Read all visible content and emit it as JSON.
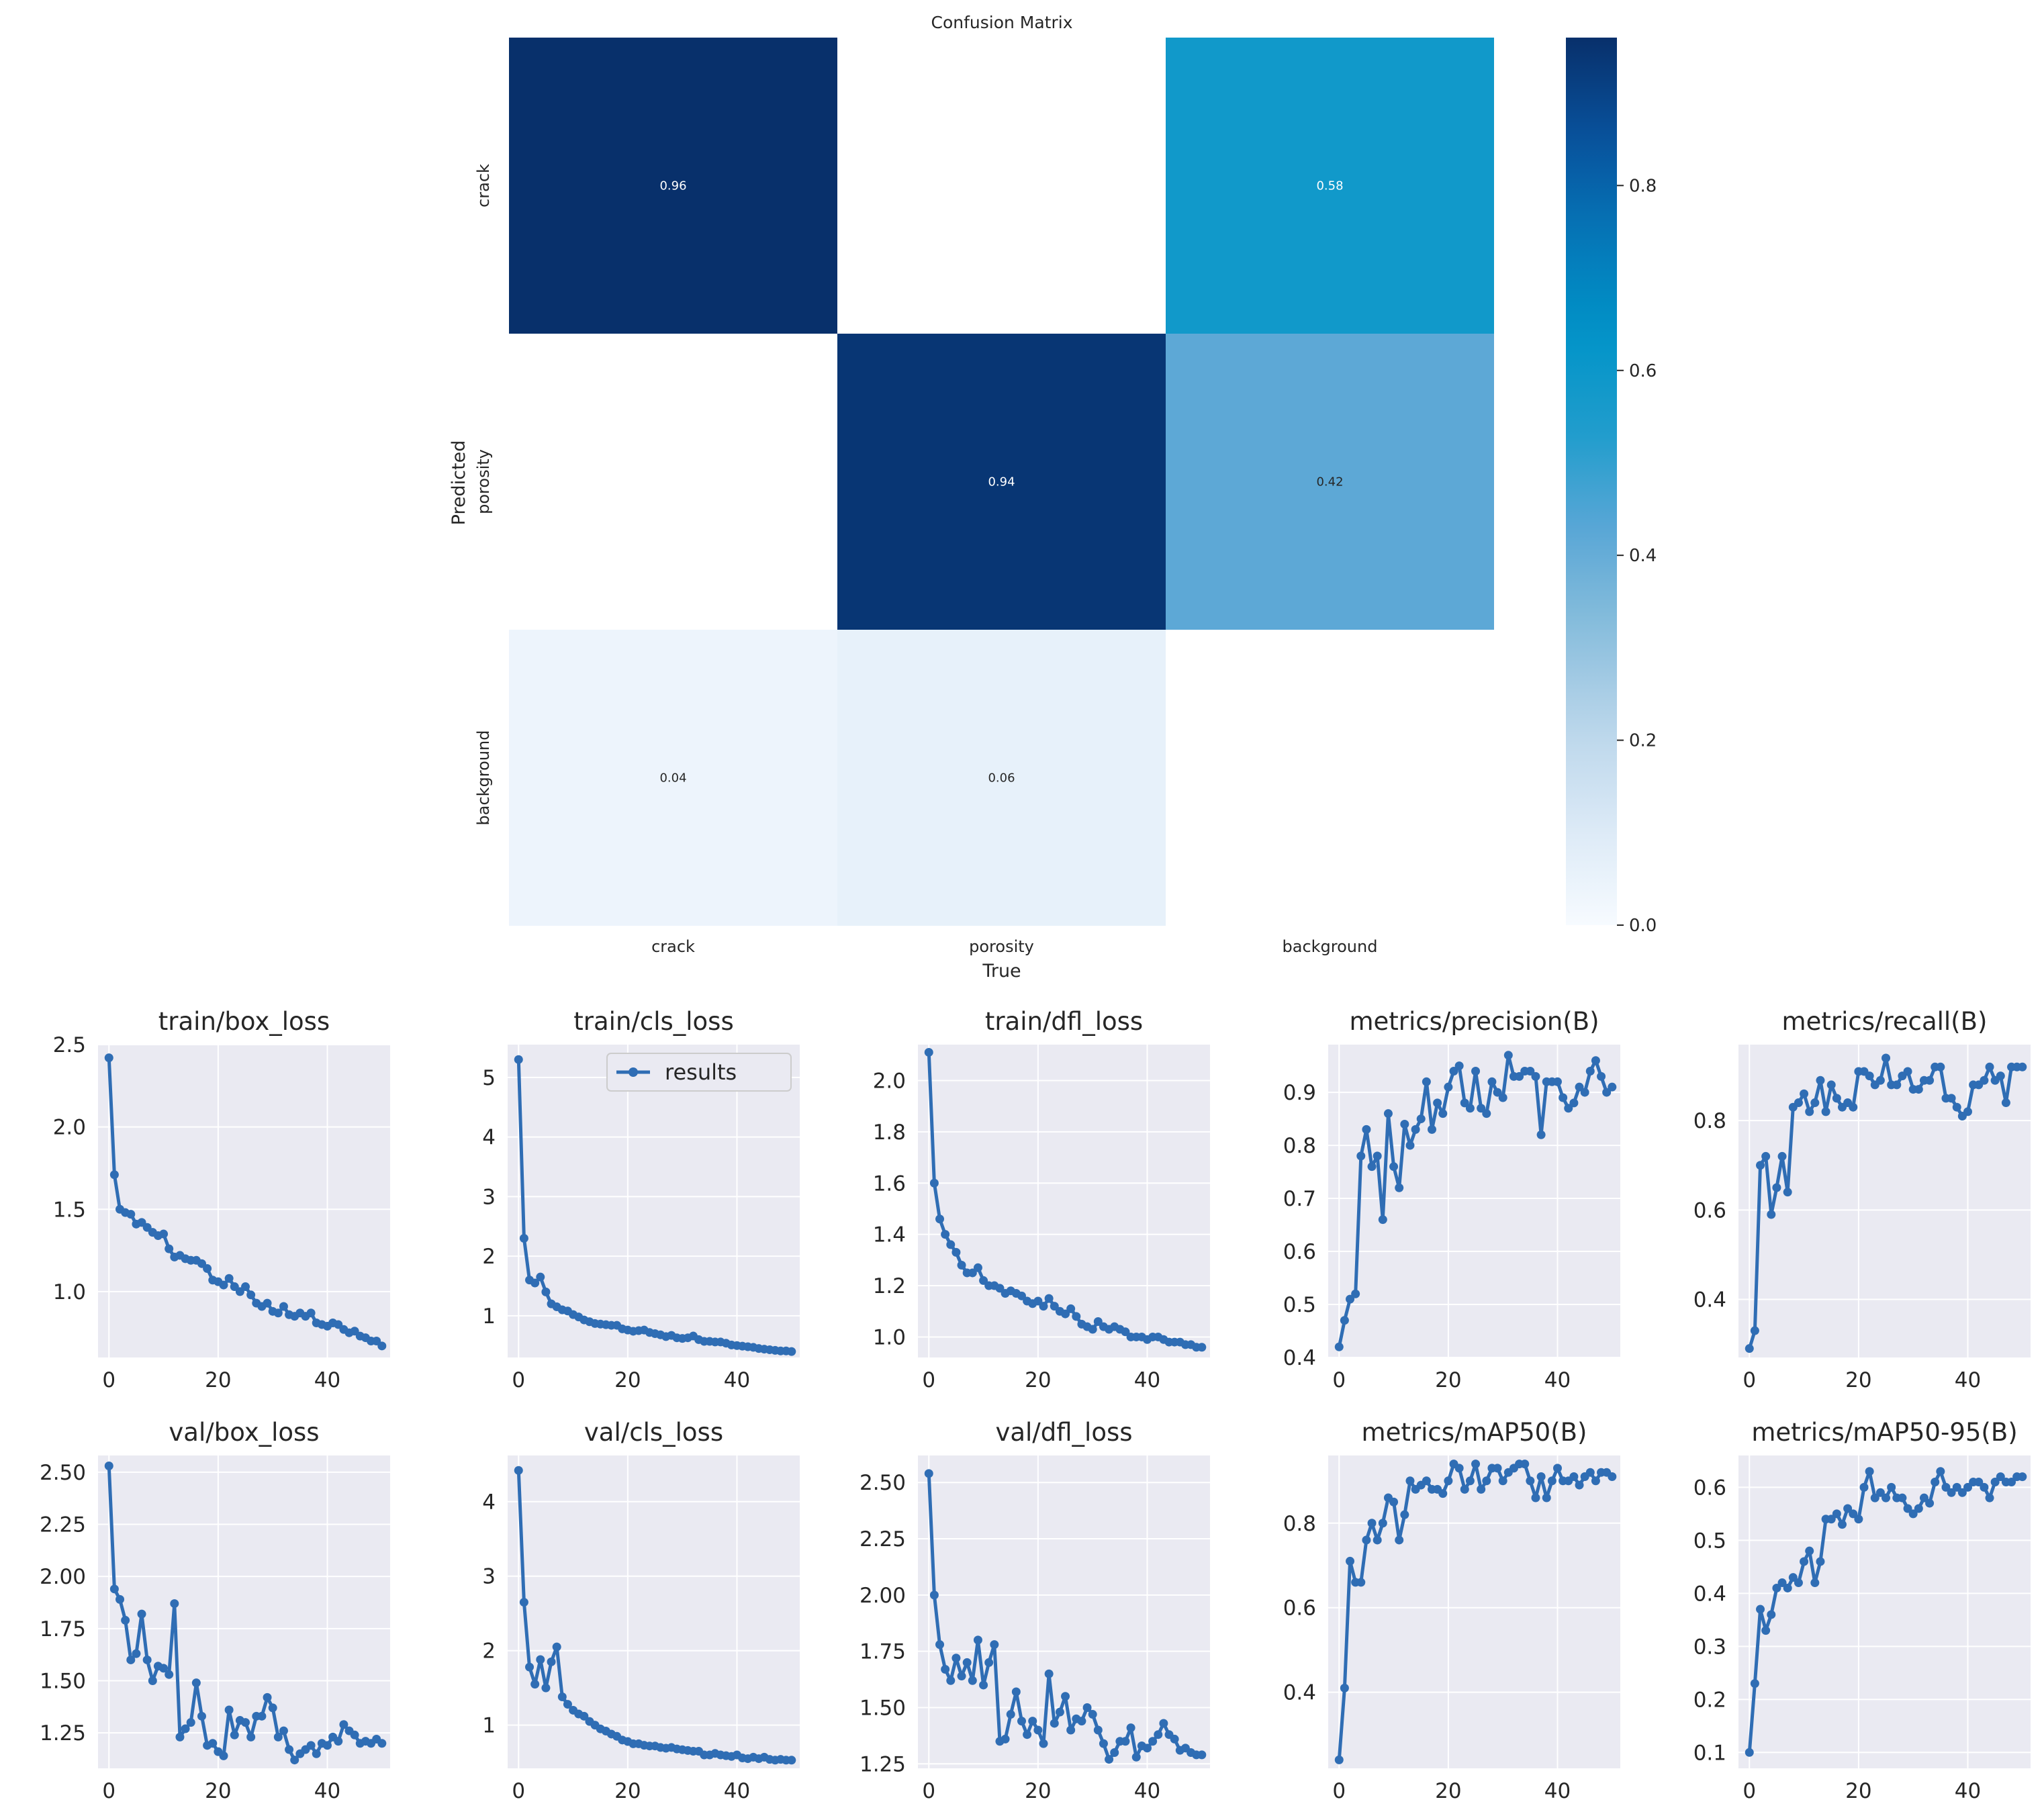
{
  "chart_data": [
    {
      "type": "heatmap",
      "title": "Confusion Matrix",
      "xlabel": "True",
      "ylabel": "Predicted",
      "x_categories": [
        "crack",
        "porosity",
        "background"
      ],
      "y_categories": [
        "crack",
        "porosity",
        "background"
      ],
      "values": [
        [
          0.96,
          null,
          0.58
        ],
        [
          null,
          0.94,
          0.42
        ],
        [
          0.04,
          0.06,
          null
        ]
      ],
      "colorbar": {
        "ticks": [
          "0.0",
          "0.2",
          "0.4",
          "0.6",
          "0.8"
        ],
        "range": [
          0,
          0.96
        ]
      },
      "colormap": [
        "#f7fbff",
        "#dbe9f6",
        "#bad6eb",
        "#89bedc",
        "#5aa7d6",
        "#1f9ccc",
        "#0094c8",
        "#0576b8",
        "#08519c",
        "#08306b"
      ]
    },
    {
      "type": "line",
      "title": "train/box_loss",
      "x_ticks": [
        0,
        20,
        40
      ],
      "xlim": [
        -2,
        51.5
      ],
      "y_ticks": [
        "1.0",
        "1.5",
        "2.0",
        "2.5"
      ],
      "ylim": [
        0.6,
        2.5
      ],
      "series": [
        {
          "name": "results",
          "values": [
            2.42,
            1.71,
            1.5,
            1.48,
            1.47,
            1.41,
            1.42,
            1.39,
            1.36,
            1.34,
            1.35,
            1.26,
            1.21,
            1.22,
            1.2,
            1.19,
            1.19,
            1.17,
            1.14,
            1.07,
            1.06,
            1.04,
            1.08,
            1.03,
            1.0,
            1.03,
            0.98,
            0.93,
            0.91,
            0.93,
            0.88,
            0.87,
            0.91,
            0.86,
            0.85,
            0.87,
            0.85,
            0.87,
            0.81,
            0.8,
            0.79,
            0.81,
            0.8,
            0.77,
            0.75,
            0.76,
            0.73,
            0.72,
            0.7,
            0.7,
            0.67
          ]
        }
      ]
    },
    {
      "type": "line",
      "title": "train/cls_loss",
      "legend": {
        "label": "results",
        "position": "top-right"
      },
      "x_ticks": [
        0,
        20,
        40
      ],
      "xlim": [
        -2,
        51.5
      ],
      "y_ticks": [
        "1",
        "2",
        "3",
        "4",
        "5"
      ],
      "ylim": [
        0.3,
        5.55
      ],
      "series": [
        {
          "name": "results",
          "values": [
            5.3,
            2.3,
            1.6,
            1.55,
            1.65,
            1.4,
            1.2,
            1.15,
            1.1,
            1.08,
            1.02,
            0.98,
            0.93,
            0.9,
            0.87,
            0.86,
            0.85,
            0.84,
            0.84,
            0.78,
            0.76,
            0.74,
            0.75,
            0.76,
            0.72,
            0.7,
            0.68,
            0.65,
            0.67,
            0.63,
            0.62,
            0.63,
            0.66,
            0.6,
            0.57,
            0.57,
            0.56,
            0.56,
            0.54,
            0.51,
            0.5,
            0.49,
            0.48,
            0.47,
            0.45,
            0.44,
            0.43,
            0.42,
            0.41,
            0.41,
            0.4
          ]
        }
      ]
    },
    {
      "type": "line",
      "title": "train/dfl_loss",
      "x_ticks": [
        0,
        20,
        40
      ],
      "xlim": [
        -2,
        51.5
      ],
      "y_ticks": [
        "1.0",
        "1.2",
        "1.4",
        "1.6",
        "1.8",
        "2.0"
      ],
      "ylim": [
        0.92,
        2.14
      ],
      "series": [
        {
          "name": "results",
          "values": [
            2.11,
            1.6,
            1.46,
            1.4,
            1.36,
            1.33,
            1.28,
            1.25,
            1.25,
            1.27,
            1.22,
            1.2,
            1.2,
            1.19,
            1.17,
            1.18,
            1.17,
            1.16,
            1.14,
            1.13,
            1.14,
            1.12,
            1.15,
            1.12,
            1.1,
            1.09,
            1.11,
            1.08,
            1.05,
            1.04,
            1.03,
            1.06,
            1.04,
            1.03,
            1.04,
            1.03,
            1.02,
            1.0,
            1.0,
            1.0,
            0.99,
            1.0,
            1.0,
            0.99,
            0.98,
            0.98,
            0.98,
            0.97,
            0.97,
            0.96,
            0.96
          ]
        }
      ]
    },
    {
      "type": "line",
      "title": "metrics/precision(B)",
      "x_ticks": [
        0,
        20,
        40
      ],
      "xlim": [
        -2,
        51.5
      ],
      "y_ticks": [
        "0.4",
        "0.5",
        "0.6",
        "0.7",
        "0.8",
        "0.9"
      ],
      "ylim": [
        0.4,
        0.99
      ],
      "series": [
        {
          "name": "results",
          "values": [
            0.42,
            0.47,
            0.51,
            0.52,
            0.78,
            0.83,
            0.76,
            0.78,
            0.66,
            0.86,
            0.76,
            0.72,
            0.84,
            0.8,
            0.83,
            0.85,
            0.92,
            0.83,
            0.88,
            0.86,
            0.91,
            0.94,
            0.95,
            0.88,
            0.87,
            0.94,
            0.87,
            0.86,
            0.92,
            0.9,
            0.89,
            0.97,
            0.93,
            0.93,
            0.94,
            0.94,
            0.93,
            0.82,
            0.92,
            0.92,
            0.92,
            0.89,
            0.87,
            0.88,
            0.91,
            0.9,
            0.94,
            0.96,
            0.93,
            0.9,
            0.91
          ]
        }
      ]
    },
    {
      "type": "line",
      "title": "metrics/recall(B)",
      "x_ticks": [
        0,
        20,
        40
      ],
      "xlim": [
        -2,
        51.5
      ],
      "y_ticks": [
        "0.4",
        "0.6",
        "0.8"
      ],
      "ylim": [
        0.27,
        0.97
      ],
      "series": [
        {
          "name": "results",
          "values": [
            0.29,
            0.33,
            0.7,
            0.72,
            0.59,
            0.65,
            0.72,
            0.64,
            0.83,
            0.84,
            0.86,
            0.82,
            0.84,
            0.89,
            0.82,
            0.88,
            0.85,
            0.83,
            0.84,
            0.83,
            0.91,
            0.91,
            0.9,
            0.88,
            0.89,
            0.94,
            0.88,
            0.88,
            0.9,
            0.91,
            0.87,
            0.87,
            0.89,
            0.89,
            0.92,
            0.92,
            0.85,
            0.85,
            0.83,
            0.81,
            0.82,
            0.88,
            0.88,
            0.89,
            0.92,
            0.89,
            0.9,
            0.84,
            0.92,
            0.92,
            0.92
          ]
        }
      ]
    },
    {
      "type": "line",
      "title": "val/box_loss",
      "x_ticks": [
        0,
        20,
        40
      ],
      "xlim": [
        -2,
        51.5
      ],
      "y_ticks": [
        "1.25",
        "1.50",
        "1.75",
        "2.00",
        "2.25",
        "2.50"
      ],
      "ylim": [
        1.08,
        2.58
      ],
      "series": [
        {
          "name": "results",
          "values": [
            2.53,
            1.94,
            1.89,
            1.79,
            1.6,
            1.63,
            1.82,
            1.6,
            1.5,
            1.57,
            1.56,
            1.53,
            1.87,
            1.23,
            1.27,
            1.3,
            1.49,
            1.33,
            1.19,
            1.2,
            1.16,
            1.14,
            1.36,
            1.24,
            1.31,
            1.3,
            1.23,
            1.33,
            1.33,
            1.42,
            1.37,
            1.23,
            1.26,
            1.17,
            1.12,
            1.15,
            1.17,
            1.19,
            1.15,
            1.2,
            1.19,
            1.23,
            1.21,
            1.29,
            1.26,
            1.24,
            1.2,
            1.21,
            1.2,
            1.22,
            1.2
          ]
        }
      ]
    },
    {
      "type": "line",
      "title": "val/cls_loss",
      "x_ticks": [
        0,
        20,
        40
      ],
      "xlim": [
        -2,
        51.5
      ],
      "y_ticks": [
        "1",
        "2",
        "3",
        "4"
      ],
      "ylim": [
        0.42,
        4.62
      ],
      "series": [
        {
          "name": "results",
          "values": [
            4.42,
            2.65,
            1.78,
            1.55,
            1.88,
            1.5,
            1.85,
            2.05,
            1.38,
            1.28,
            1.2,
            1.15,
            1.12,
            1.05,
            1.0,
            0.95,
            0.92,
            0.88,
            0.85,
            0.8,
            0.78,
            0.75,
            0.75,
            0.73,
            0.72,
            0.72,
            0.7,
            0.69,
            0.7,
            0.68,
            0.67,
            0.66,
            0.65,
            0.65,
            0.6,
            0.6,
            0.62,
            0.6,
            0.59,
            0.58,
            0.6,
            0.56,
            0.55,
            0.57,
            0.55,
            0.57,
            0.54,
            0.53,
            0.54,
            0.53,
            0.53
          ]
        }
      ]
    },
    {
      "type": "line",
      "title": "val/dfl_loss",
      "x_ticks": [
        0,
        20,
        40
      ],
      "xlim": [
        -2,
        51.5
      ],
      "y_ticks": [
        "1.25",
        "1.50",
        "1.75",
        "2.00",
        "2.25",
        "2.50"
      ],
      "ylim": [
        1.23,
        2.62
      ],
      "series": [
        {
          "name": "results",
          "values": [
            2.54,
            2.0,
            1.78,
            1.67,
            1.62,
            1.72,
            1.64,
            1.7,
            1.62,
            1.8,
            1.6,
            1.7,
            1.78,
            1.35,
            1.36,
            1.47,
            1.57,
            1.44,
            1.38,
            1.44,
            1.4,
            1.34,
            1.65,
            1.43,
            1.48,
            1.55,
            1.4,
            1.45,
            1.44,
            1.5,
            1.47,
            1.4,
            1.34,
            1.27,
            1.3,
            1.35,
            1.35,
            1.41,
            1.28,
            1.33,
            1.32,
            1.35,
            1.38,
            1.43,
            1.38,
            1.36,
            1.31,
            1.32,
            1.3,
            1.29,
            1.29
          ]
        }
      ]
    },
    {
      "type": "line",
      "title": "metrics/mAP50(B)",
      "x_ticks": [
        0,
        20,
        40
      ],
      "xlim": [
        -2,
        51.5
      ],
      "y_ticks": [
        "0.4",
        "0.6",
        "0.8"
      ],
      "ylim": [
        0.22,
        0.96
      ],
      "series": [
        {
          "name": "results",
          "values": [
            0.24,
            0.41,
            0.71,
            0.66,
            0.66,
            0.76,
            0.8,
            0.76,
            0.8,
            0.86,
            0.85,
            0.76,
            0.82,
            0.9,
            0.88,
            0.89,
            0.9,
            0.88,
            0.88,
            0.87,
            0.9,
            0.94,
            0.93,
            0.88,
            0.9,
            0.94,
            0.88,
            0.9,
            0.93,
            0.93,
            0.9,
            0.92,
            0.93,
            0.94,
            0.94,
            0.9,
            0.86,
            0.91,
            0.86,
            0.9,
            0.93,
            0.9,
            0.9,
            0.91,
            0.89,
            0.91,
            0.92,
            0.9,
            0.92,
            0.92,
            0.91
          ]
        }
      ]
    },
    {
      "type": "line",
      "title": "metrics/mAP50-95(B)",
      "x_ticks": [
        0,
        20,
        40
      ],
      "xlim": [
        -2,
        51.5
      ],
      "y_ticks": [
        "0.1",
        "0.2",
        "0.3",
        "0.4",
        "0.5",
        "0.6"
      ],
      "ylim": [
        0.07,
        0.66
      ],
      "series": [
        {
          "name": "results",
          "values": [
            0.1,
            0.23,
            0.37,
            0.33,
            0.36,
            0.41,
            0.42,
            0.41,
            0.43,
            0.42,
            0.46,
            0.48,
            0.42,
            0.46,
            0.54,
            0.54,
            0.55,
            0.53,
            0.56,
            0.55,
            0.54,
            0.6,
            0.63,
            0.58,
            0.59,
            0.58,
            0.6,
            0.58,
            0.58,
            0.56,
            0.55,
            0.56,
            0.58,
            0.57,
            0.61,
            0.63,
            0.6,
            0.59,
            0.6,
            0.59,
            0.6,
            0.61,
            0.61,
            0.6,
            0.58,
            0.61,
            0.62,
            0.61,
            0.61,
            0.62,
            0.62
          ]
        }
      ]
    }
  ]
}
